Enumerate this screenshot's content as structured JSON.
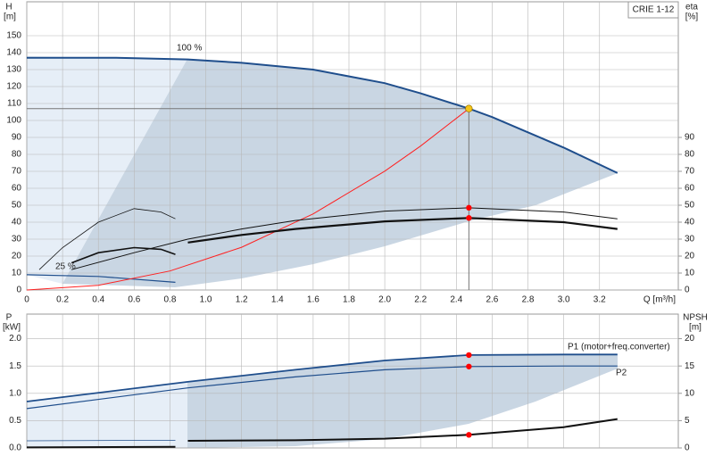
{
  "chart_data": [
    {
      "type": "line",
      "title": "CRIE 1-12",
      "ylabel": "H",
      "yunit": "[m]",
      "y2label": "eta",
      "y2unit": "[%]",
      "xlabel": "Q [m³/h]",
      "annotations": [
        "100 %",
        "25 %"
      ],
      "xlim": [
        0,
        3.64
      ],
      "ylim": [
        0,
        170
      ],
      "y2lim": [
        0,
        170
      ],
      "grid": true,
      "xticks": [
        0,
        0.2,
        0.4,
        0.6,
        0.8,
        {
          "value": 1,
          "label": "1.0"
        },
        1.2,
        1.4,
        1.6,
        1.8,
        {
          "value": 2,
          "label": "2.0"
        },
        2.2,
        2.4,
        2.6,
        2.8,
        {
          "value": 3,
          "label": "3.0"
        },
        3.2
      ],
      "yticks": [
        0,
        10,
        20,
        30,
        40,
        50,
        60,
        70,
        80,
        90,
        100,
        110,
        120,
        130,
        140,
        150
      ],
      "y2ticks": [
        0,
        10,
        20,
        30,
        40,
        50,
        60,
        70,
        80,
        90
      ],
      "series": [
        {
          "color": "#1f4e8c",
          "width": 2,
          "x": [
            0,
            0.5,
            0.9,
            1.2,
            1.6,
            2.0,
            2.2,
            2.47,
            2.6,
            2.8,
            3.0,
            3.3
          ],
          "values": [
            137,
            137,
            136,
            134,
            130,
            122,
            116,
            107,
            102,
            93,
            84,
            69
          ]
        },
        {
          "color": "#1f4e8c",
          "width": 1.2,
          "x": [
            0,
            0.4,
            0.83
          ],
          "values": [
            9,
            8,
            4.5
          ]
        },
        {
          "color": "#ff2020",
          "width": 1,
          "x": [
            0,
            0.4,
            0.8,
            1.2,
            1.6,
            2.0,
            2.2,
            2.47
          ],
          "values": [
            0,
            2.8,
            11.2,
            25.2,
            44.9,
            70.1,
            84.9,
            107
          ]
        },
        {
          "color": "#111111",
          "width": 1,
          "axis": "y2",
          "x": [
            0.25,
            0.6,
            0.9,
            1.2,
            1.5,
            2.0,
            2.47,
            3.0,
            3.3
          ],
          "values": [
            12,
            22,
            30,
            36,
            41,
            46.5,
            48.5,
            46,
            42
          ]
        },
        {
          "color": "#111111",
          "width": 2.2,
          "axis": "y2",
          "x": [
            0.9,
            1.2,
            1.5,
            2.0,
            2.47,
            3.0,
            3.3
          ],
          "values": [
            28,
            32.5,
            36,
            40.5,
            42.5,
            40,
            36
          ]
        },
        {
          "color": "#111111",
          "width": 0.8,
          "axis": "y2",
          "x": [
            0.07,
            0.2,
            0.4,
            0.6,
            0.75,
            0.83
          ],
          "values": [
            12,
            25,
            40,
            48,
            46,
            42
          ]
        },
        {
          "color": "#111111",
          "width": 1.6,
          "axis": "y2",
          "x": [
            0.25,
            0.4,
            0.6,
            0.75,
            0.83
          ],
          "values": [
            16,
            22,
            25,
            24,
            21
          ]
        }
      ],
      "duty_point": {
        "x": 2.47,
        "y": 107,
        "color": "#f5c518"
      },
      "markers": [
        {
          "x": 2.47,
          "y": 48.5,
          "axis": "y2",
          "color": "#ff0000"
        },
        {
          "x": 2.47,
          "y": 42.5,
          "axis": "y2",
          "color": "#ff0000"
        }
      ]
    },
    {
      "type": "line",
      "ylabel": "P",
      "yunit": "[kW]",
      "y2label": "NPSH",
      "y2unit": "[m]",
      "xlim": [
        0,
        3.64
      ],
      "ylim": [
        0,
        2.45
      ],
      "y2lim": [
        0,
        24.5
      ],
      "grid": true,
      "yticks": [
        {
          "value": 0,
          "label": "0.0"
        },
        0.5,
        {
          "value": 1,
          "label": "1.0"
        },
        1.5,
        {
          "value": 2,
          "label": "2.0"
        }
      ],
      "y2ticks": [
        0,
        5,
        10,
        15,
        20
      ],
      "series": [
        {
          "name": "P1 (motor+freq.converter)",
          "color": "#1f4e8c",
          "width": 1.8,
          "x": [
            0,
            0.9,
            1.5,
            2.0,
            2.47,
            3.0,
            3.3
          ],
          "values": [
            0.85,
            1.21,
            1.43,
            1.6,
            1.7,
            1.71,
            1.71
          ]
        },
        {
          "name": "P2",
          "color": "#1f4e8c",
          "width": 1.2,
          "x": [
            0,
            0.9,
            1.5,
            2.0,
            2.47,
            3.0,
            3.3
          ],
          "values": [
            0.72,
            1.1,
            1.3,
            1.43,
            1.49,
            1.5,
            1.5
          ]
        },
        {
          "color": "#111111",
          "width": 2,
          "axis": "y2",
          "x": [
            0.9,
            1.5,
            2.0,
            2.47,
            3.0,
            3.3
          ],
          "values": [
            1.3,
            1.4,
            1.7,
            2.4,
            3.8,
            5.3
          ]
        },
        {
          "color": "#111111",
          "width": 2,
          "axis": "y2",
          "x": [
            0,
            0.83
          ],
          "values": [
            0.1,
            0.2
          ]
        },
        {
          "color": "#1f4e8c",
          "width": 0.8,
          "x": [
            0,
            0.83
          ],
          "values": [
            0.13,
            0.14
          ]
        }
      ],
      "markers": [
        {
          "x": 2.47,
          "y": 1.7,
          "color": "#ff0000"
        },
        {
          "x": 2.47,
          "y": 1.49,
          "color": "#ff0000"
        },
        {
          "x": 2.47,
          "y": 2.4,
          "axis": "y2",
          "color": "#ff0000"
        }
      ]
    }
  ]
}
